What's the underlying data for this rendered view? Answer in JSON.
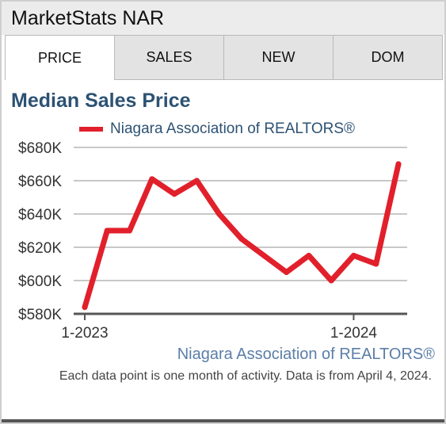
{
  "header": {
    "title": "MarketStats NAR"
  },
  "tabs": [
    {
      "label": "PRICE",
      "active": true
    },
    {
      "label": "SALES",
      "active": false
    },
    {
      "label": "NEW",
      "active": false
    },
    {
      "label": "DOM",
      "active": false
    }
  ],
  "legend": {
    "label": "Niagara Association of REALTORS®",
    "color": "#e1202b"
  },
  "source_link": "Niagara Association of REALTORS®",
  "note": "Each data point is one month of activity. Data is from April 4, 2024.",
  "chart_data": {
    "type": "line",
    "title": "Median Sales Price",
    "xlabel": "",
    "ylabel": "",
    "x": [
      "2023-01",
      "2023-02",
      "2023-03",
      "2023-04",
      "2023-05",
      "2023-06",
      "2023-07",
      "2023-08",
      "2023-09",
      "2023-10",
      "2023-11",
      "2023-12",
      "2024-01",
      "2024-02",
      "2024-03"
    ],
    "x_tick_labels": [
      {
        "x": "2023-01",
        "label": "1-2023"
      },
      {
        "x": "2024-01",
        "label": "1-2024"
      }
    ],
    "series": [
      {
        "name": "Niagara Association of REALTORS®",
        "color": "#e1202b",
        "values": [
          584000,
          630000,
          630000,
          661000,
          652000,
          660000,
          640000,
          625000,
          615000,
          605000,
          615000,
          600000,
          615000,
          610000,
          670000
        ]
      }
    ],
    "ylim": [
      580000,
      680000
    ],
    "y_ticks": [
      {
        "value": 580000,
        "label": "$580K"
      },
      {
        "value": 600000,
        "label": "$600K"
      },
      {
        "value": 620000,
        "label": "$620K"
      },
      {
        "value": 640000,
        "label": "$640K"
      },
      {
        "value": 660000,
        "label": "$660K"
      },
      {
        "value": 680000,
        "label": "$680K"
      }
    ],
    "grid": true,
    "legend_position": "top-left"
  }
}
